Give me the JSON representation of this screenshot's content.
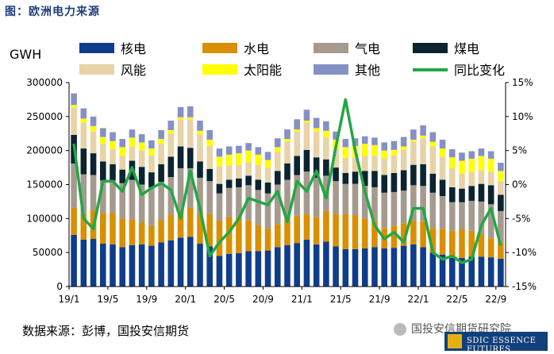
{
  "title": "图：欧洲电力来源",
  "source": "数据来源：彭博，国投安信期货",
  "watermark": "国投安信期货研究院",
  "logo_text": "SDIC ESSENCE FUTURES",
  "chart_data": {
    "type": "bar",
    "stacked": true,
    "ylabel": "GWH",
    "ylim": [
      0,
      300000
    ],
    "y2lim": [
      -15,
      15
    ],
    "yticks": [
      0,
      50000,
      100000,
      150000,
      200000,
      250000,
      300000
    ],
    "yticks_labels": [
      "0",
      "50000",
      "100000",
      "150000",
      "200000",
      "250000",
      "300000"
    ],
    "y2ticks": [
      -15,
      -10,
      -5,
      0,
      5,
      10,
      15
    ],
    "y2ticks_labels": [
      "-15%",
      "-10%",
      "-5%",
      "0%",
      "5%",
      "10%",
      "15%"
    ],
    "categories": [
      "19/1",
      "19/2",
      "19/3",
      "19/4",
      "19/5",
      "19/6",
      "19/7",
      "19/8",
      "19/9",
      "19/10",
      "19/11",
      "19/12",
      "20/1",
      "20/2",
      "20/3",
      "20/4",
      "20/5",
      "20/6",
      "20/7",
      "20/8",
      "20/9",
      "20/10",
      "20/11",
      "20/12",
      "21/1",
      "21/2",
      "21/3",
      "21/4",
      "21/5",
      "21/6",
      "21/7",
      "21/8",
      "21/9",
      "21/10",
      "21/11",
      "21/12",
      "22/1",
      "22/2",
      "22/3",
      "22/4",
      "22/5",
      "22/6",
      "22/7",
      "22/8",
      "22/9"
    ],
    "xtick_labels": [
      "19/1",
      "19/5",
      "19/9",
      "20/1",
      "20/5",
      "20/9",
      "21/1",
      "21/5",
      "21/9",
      "22/1",
      "22/5",
      "22/9"
    ],
    "series": [
      {
        "name": "核电",
        "color": "#0f3d8c",
        "values": [
          76000,
          69000,
          70000,
          63000,
          62000,
          58000,
          61000,
          62000,
          60000,
          65000,
          68000,
          72000,
          73000,
          63000,
          59000,
          45000,
          48000,
          49000,
          52000,
          52000,
          53000,
          58000,
          61000,
          64000,
          69000,
          62000,
          66000,
          59000,
          55000,
          55000,
          56000,
          58000,
          56000,
          57000,
          60000,
          62000,
          58000,
          50000,
          47000,
          42000,
          42000,
          44000,
          44000,
          43000,
          41000
        ]
      },
      {
        "name": "水电",
        "color": "#d98f00",
        "values": [
          40000,
          38000,
          42000,
          45000,
          46000,
          42000,
          38000,
          32000,
          30000,
          33000,
          38000,
          40000,
          43000,
          45000,
          48000,
          52000,
          55000,
          52000,
          45000,
          38000,
          32000,
          34000,
          38000,
          40000,
          38000,
          40000,
          45000,
          48000,
          52000,
          50000,
          44000,
          38000,
          30000,
          32000,
          33000,
          35000,
          38000,
          36000,
          38000,
          40000,
          42000,
          38000,
          33000,
          28000,
          24000
        ]
      },
      {
        "name": "气电",
        "color": "#a69a8e",
        "values": [
          65000,
          58000,
          52000,
          48000,
          48000,
          52000,
          58000,
          56000,
          56000,
          56000,
          55000,
          62000,
          58000,
          52000,
          48000,
          40000,
          42000,
          45000,
          52000,
          52000,
          52000,
          58000,
          58000,
          60000,
          62000,
          58000,
          52000,
          48000,
          44000,
          46000,
          48000,
          50000,
          52000,
          50000,
          48000,
          52000,
          52000,
          52000,
          48000,
          42000,
          40000,
          44000,
          48000,
          50000,
          46000
        ]
      },
      {
        "name": "煤电",
        "color": "#0b2430",
        "values": [
          42000,
          38000,
          32000,
          28000,
          24000,
          20000,
          28000,
          26000,
          22000,
          26000,
          30000,
          32000,
          30000,
          24000,
          18000,
          14000,
          12000,
          13000,
          14000,
          15000,
          16000,
          20000,
          24000,
          28000,
          32000,
          30000,
          24000,
          20000,
          16000,
          18000,
          22000,
          24000,
          26000,
          28000,
          30000,
          30000,
          32000,
          28000,
          24000,
          22000,
          20000,
          22000,
          26000,
          28000,
          24000
        ]
      },
      {
        "name": "风能",
        "color": "#e8d2a8",
        "values": [
          40000,
          38000,
          32000,
          26000,
          22000,
          20000,
          21000,
          24000,
          25000,
          30000,
          34000,
          40000,
          42000,
          40000,
          34000,
          26000,
          21000,
          20000,
          20000,
          22000,
          22000,
          28000,
          32000,
          36000,
          40000,
          38000,
          32000,
          27000,
          22000,
          21000,
          22000,
          22000,
          24000,
          26000,
          30000,
          34000,
          38000,
          40000,
          34000,
          28000,
          22000,
          20000,
          20000,
          20000,
          20000
        ]
      },
      {
        "name": "太阳能",
        "color": "#ffff00",
        "values": [
          4000,
          6000,
          8000,
          10000,
          12000,
          13000,
          13000,
          12000,
          10000,
          7000,
          5000,
          3000,
          3000,
          5000,
          9000,
          14000,
          16000,
          17000,
          17000,
          15000,
          11000,
          7000,
          4000,
          3000,
          3000,
          5000,
          10000,
          14000,
          16000,
          17000,
          18000,
          16000,
          12000,
          8000,
          5000,
          3000,
          4000,
          7000,
          12000,
          16000,
          19000,
          20000,
          21000,
          19000,
          15000
        ]
      },
      {
        "name": "其他",
        "color": "#8591c4",
        "values": [
          17000,
          15000,
          14000,
          13000,
          13000,
          12000,
          12000,
          12000,
          12000,
          13000,
          14000,
          15000,
          16000,
          15000,
          14000,
          12000,
          12000,
          11000,
          11000,
          11000,
          12000,
          13000,
          14000,
          15000,
          16000,
          15000,
          14000,
          12000,
          12000,
          11000,
          11000,
          11000,
          12000,
          13000,
          14000,
          15000,
          15000,
          14000,
          13000,
          12000,
          12000,
          11000,
          11000,
          11000,
          12000
        ]
      },
      {
        "name": "同比变化",
        "color": "#22a745",
        "axis": "right",
        "type": "line",
        "values": [
          6.0,
          -5.0,
          -6.5,
          0.5,
          0.5,
          -1.0,
          2.5,
          -1.5,
          -0.5,
          0.2,
          -0.8,
          -5.0,
          2.0,
          -3.5,
          -10.5,
          -8.5,
          -7.0,
          -5.0,
          -2.0,
          -2.5,
          -3.0,
          -1.0,
          -5.5,
          0.5,
          -1.0,
          2.0,
          -2.0,
          5.5,
          12.5,
          5.0,
          -1.0,
          -6.0,
          -8.0,
          -7.0,
          -8.5,
          -3.5,
          -3.5,
          -10.0,
          -11.0,
          -10.5,
          -11.5,
          -11.0,
          -6.0,
          -3.5,
          -9.0
        ]
      }
    ]
  }
}
